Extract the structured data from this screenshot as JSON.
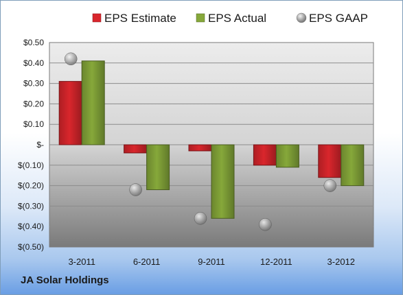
{
  "company": "JA Solar Holdings",
  "chart_data": {
    "type": "bar",
    "categories": [
      "3-2011",
      "6-2011",
      "9-2011",
      "12-2011",
      "3-2012"
    ],
    "series": [
      {
        "name": "EPS Estimate",
        "kind": "bar",
        "color": "#d9262c",
        "values": [
          0.31,
          -0.04,
          -0.03,
          -0.1,
          -0.16
        ]
      },
      {
        "name": "EPS Actual",
        "kind": "bar",
        "color": "#86a83a",
        "values": [
          0.41,
          -0.22,
          -0.36,
          -0.11,
          -0.2
        ]
      },
      {
        "name": "EPS GAAP",
        "kind": "marker",
        "color": "#a8a8a8",
        "values": [
          0.42,
          -0.22,
          -0.36,
          -0.39,
          -0.2
        ]
      }
    ],
    "ylim": [
      -0.5,
      0.5
    ],
    "yticks": [
      0.5,
      0.4,
      0.3,
      0.2,
      0.1,
      0,
      -0.1,
      -0.2,
      -0.3,
      -0.4,
      -0.5
    ],
    "ytick_labels": [
      "$0.50",
      "$0.40",
      "$0.30",
      "$0.20",
      "$0.10",
      "$-",
      "$(0.10)",
      "$(0.20)",
      "$(0.30)",
      "$(0.40)",
      "$(0.50)"
    ],
    "grid": true,
    "legend": "top"
  }
}
